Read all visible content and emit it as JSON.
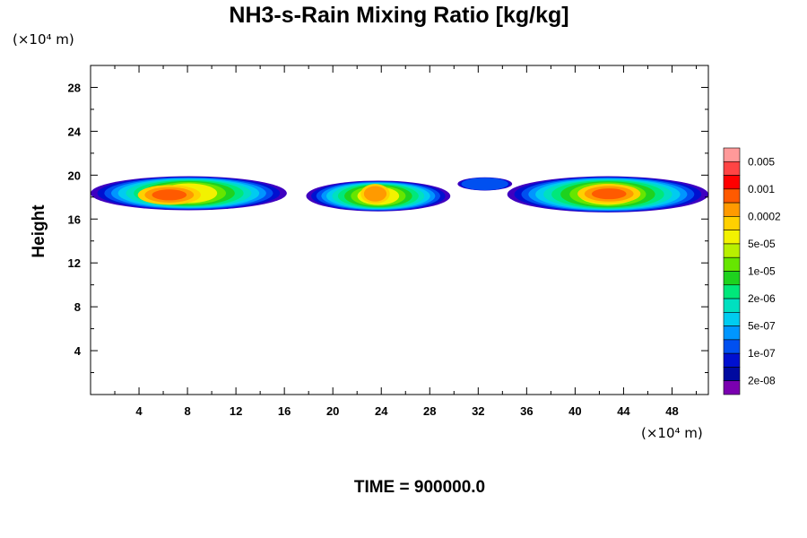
{
  "chart_data": {
    "type": "heatmap",
    "title": "NH3-s-Rain Mixing Ratio [kg/kg]",
    "ylabel": "Height",
    "x_unit": "(×10⁴ m)",
    "y_unit": "(×10⁴ m)",
    "xlim": [
      0,
      51
    ],
    "ylim": [
      0,
      30
    ],
    "x_ticks": [
      "4",
      "8",
      "12",
      "16",
      "20",
      "24",
      "28",
      "32",
      "36",
      "40",
      "44",
      "48"
    ],
    "y_ticks": [
      "4",
      "8",
      "12",
      "16",
      "20",
      "24",
      "28"
    ],
    "time_label": "TIME = 900000.0",
    "colorbar": {
      "colors": [
        "#ff9999",
        "#ff4444",
        "#ff0000",
        "#ff5a00",
        "#ff9a00",
        "#ffd000",
        "#f2f200",
        "#b8f000",
        "#66e600",
        "#1ed21e",
        "#00e87a",
        "#00e0c0",
        "#00ccf0",
        "#0096ff",
        "#0050f0",
        "#0010d0",
        "#000aa0",
        "#7a00b0"
      ],
      "labels": [
        "0.005",
        "0.001",
        "0.0002",
        "5e-05",
        "1e-05",
        "2e-06",
        "5e-07",
        "1e-07",
        "2e-08"
      ]
    },
    "clouds": [
      {
        "x0": 0,
        "x1": 16.2,
        "y0": 16.8,
        "y1": 19.9,
        "core_x": 6.5,
        "core_y": 18.2
      },
      {
        "x0": 17.8,
        "x1": 29.7,
        "y0": 16.7,
        "y1": 19.5,
        "core_x": 23.5,
        "core_y": 18.3
      },
      {
        "x0": 30.3,
        "x1": 34.8,
        "y0": 18.6,
        "y1": 19.8,
        "core_x": 32.0,
        "core_y": 19.2
      },
      {
        "x0": 34.4,
        "x1": 51,
        "y0": 16.6,
        "y1": 19.9,
        "core_x": 42.8,
        "core_y": 18.3
      }
    ]
  }
}
